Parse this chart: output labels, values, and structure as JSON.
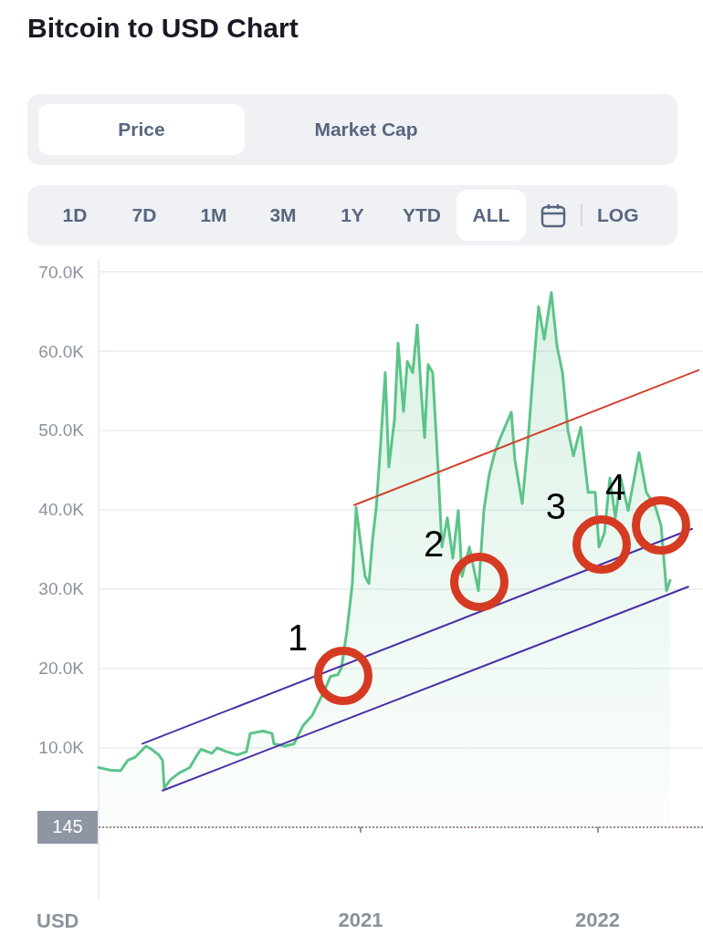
{
  "chart_data": {
    "type": "area",
    "title": "Bitcoin to USD Chart",
    "ylabel": "USD",
    "annotations": [
      "Price",
      "Market Cap",
      "1D",
      "7D",
      "1M",
      "3M",
      "1Y",
      "YTD",
      "ALL",
      "LOG",
      "145",
      {
        "text": "1",
        "x": 2020.927,
        "y": 19100
      },
      {
        "text": "2",
        "x": 2021.501,
        "y": 30900
      },
      {
        "text": "3",
        "x": 2022.017,
        "y": 35600
      },
      {
        "text": "4",
        "x": 2022.268,
        "y": 38000
      }
    ],
    "xlim": [
      2019.894,
      2022.445
    ],
    "xticks": [
      2021,
      2022
    ],
    "ylim": [
      -9000,
      71500
    ],
    "yticks": [
      {
        "value": 10000,
        "label": "10.0K"
      },
      {
        "value": 20000,
        "label": "20.0K"
      },
      {
        "value": 30000,
        "label": "30.0K"
      },
      {
        "value": 40000,
        "label": "40.0K"
      },
      {
        "value": 50000,
        "label": "50.0K"
      },
      {
        "value": 60000,
        "label": "60.0K"
      },
      {
        "value": 70000,
        "label": "70.0K"
      }
    ],
    "grid": "y",
    "marker": "none",
    "line_style": "solid",
    "ref_lines": [
      {
        "axis": "y",
        "value": 0,
        "color": "#9c8a8a",
        "line_style": "dotted"
      }
    ],
    "x": [
      2019.894,
      2019.94,
      2019.987,
      2020.017,
      2020.048,
      2020.094,
      2020.118,
      2020.148,
      2020.164,
      2020.171,
      2020.195,
      2020.233,
      2020.279,
      2020.31,
      2020.326,
      2020.372,
      2020.395,
      2020.434,
      2020.48,
      2020.518,
      2020.534,
      2020.588,
      2020.626,
      2020.634,
      2020.68,
      2020.719,
      2020.757,
      2020.796,
      2020.842,
      2020.873,
      2020.904,
      2020.919,
      2020.942,
      2020.965,
      2020.981,
      2020.996,
      2021.019,
      2021.035,
      2021.05,
      2021.066,
      2021.081,
      2021.104,
      2021.119,
      2021.143,
      2021.158,
      2021.181,
      2021.197,
      2021.22,
      2021.239,
      2021.254,
      2021.27,
      2021.285,
      2021.304,
      2021.328,
      2021.343,
      2021.366,
      2021.389,
      2021.412,
      2021.428,
      2021.459,
      2021.497,
      2021.52,
      2021.543,
      2021.566,
      2021.59,
      2021.636,
      2021.651,
      2021.682,
      2021.705,
      2021.728,
      2021.751,
      2021.775,
      2021.805,
      2021.829,
      2021.852,
      2021.875,
      2021.898,
      2021.929,
      2021.96,
      2021.99,
      2022.006,
      2022.029,
      2022.052,
      2022.075,
      2022.098,
      2022.129,
      2022.175,
      2022.206,
      2022.245,
      2022.268,
      2022.291,
      2022.306
    ],
    "series": [
      {
        "color": "#5cc489",
        "values": [
          7500,
          7200,
          7100,
          8400,
          8800,
          10200,
          9800,
          9100,
          8400,
          4900,
          5900,
          6800,
          7500,
          9100,
          9800,
          9300,
          10000,
          9500,
          9100,
          9500,
          11800,
          12100,
          11800,
          10500,
          10200,
          10500,
          12800,
          14100,
          16900,
          19000,
          19200,
          20100,
          24700,
          30700,
          40300,
          36700,
          31600,
          30700,
          36200,
          40300,
          46800,
          57300,
          45400,
          51400,
          61000,
          52400,
          58700,
          57300,
          63300,
          55500,
          49100,
          58300,
          57300,
          44500,
          35300,
          39000,
          33900,
          39900,
          31600,
          35300,
          29800,
          39900,
          44500,
          47200,
          49100,
          52300,
          46300,
          40800,
          48100,
          57300,
          65600,
          61500,
          67400,
          60600,
          57300,
          50000,
          46800,
          50400,
          42200,
          42200,
          35300,
          37100,
          44000,
          39000,
          44000,
          39900,
          47200,
          42200,
          40300,
          38000,
          29800,
          31100
        ]
      },
      {
        "type": "line",
        "color": "#4b2fa8",
        "x": [
          2020.079,
          2022.399
        ],
        "values": [
          10500,
          37600
        ]
      },
      {
        "type": "line",
        "color": "#4b2fa8",
        "x": [
          2020.164,
          2022.383
        ],
        "values": [
          4600,
          30300
        ]
      },
      {
        "type": "line",
        "color": "#d2422c",
        "x": [
          2020.973,
          2022.426
        ],
        "values": [
          40600,
          57600
        ]
      }
    ]
  }
}
